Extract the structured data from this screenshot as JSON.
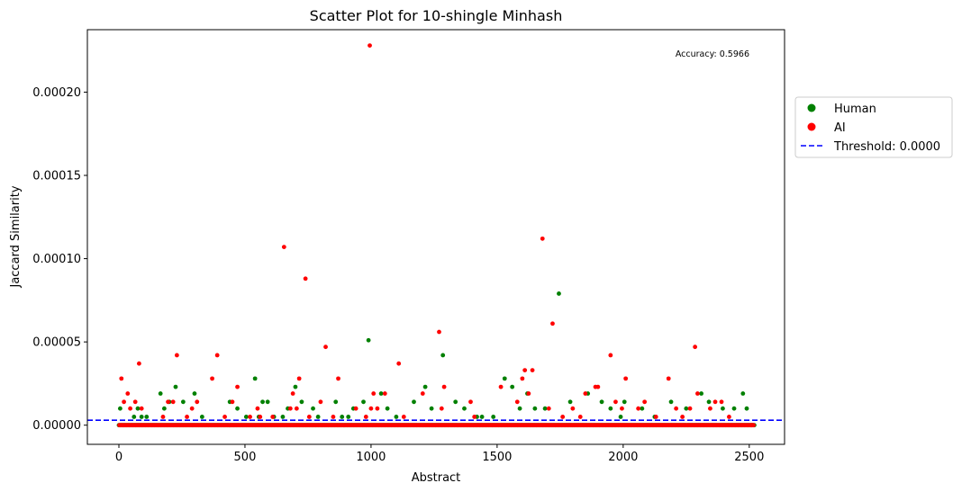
{
  "chart_data": {
    "type": "scatter",
    "title": "Scatter Plot for 10-shingle Minhash",
    "xlabel": "Abstract",
    "ylabel": "Jaccard Similarity",
    "xlim": [
      -125,
      2640
    ],
    "ylim": [
      -1.15e-05,
      0.0002375
    ],
    "xticks": [
      0,
      500,
      1000,
      1500,
      2000,
      2500
    ],
    "yticks": [
      0.0,
      5e-05,
      0.0001,
      0.00015,
      0.0002
    ],
    "xtick_labels": [
      "0",
      "500",
      "1000",
      "1500",
      "2000",
      "2500"
    ],
    "ytick_labels": [
      "0.00000",
      "0.00005",
      "0.00010",
      "0.00015",
      "0.00020"
    ],
    "grid": false,
    "legend_position": "outside-right",
    "annotation": "Accuracy: 0.5966",
    "threshold": {
      "label": "Threshold: 0.0000",
      "value": 3e-06,
      "color": "#0000ff",
      "style": "dashed"
    },
    "series": [
      {
        "name": "Human",
        "color": "#008000",
        "baseline": {
          "x_start": 0,
          "x_end": 2520,
          "step": 5,
          "y": 0.0
        },
        "x": [
          5,
          60,
          75,
          90,
          110,
          165,
          180,
          200,
          225,
          255,
          300,
          330,
          440,
          470,
          505,
          540,
          555,
          570,
          590,
          615,
          650,
          670,
          700,
          725,
          770,
          790,
          860,
          885,
          910,
          930,
          970,
          990,
          1040,
          1065,
          1100,
          1170,
          1215,
          1240,
          1285,
          1335,
          1370,
          1420,
          1440,
          1485,
          1530,
          1560,
          1590,
          1620,
          1650,
          1690,
          1745,
          1790,
          1860,
          1915,
          1950,
          1990,
          2005,
          2075,
          2125,
          2190,
          2250,
          2310,
          2340,
          2395,
          2440,
          2475,
          2490
        ],
        "y": [
          1e-05,
          5e-06,
          1e-05,
          5e-06,
          5e-06,
          1.9e-05,
          1e-05,
          1.4e-05,
          2.3e-05,
          1.4e-05,
          1.9e-05,
          5e-06,
          1.4e-05,
          1e-05,
          5e-06,
          2.8e-05,
          5e-06,
          1.4e-05,
          1.4e-05,
          5e-06,
          5e-06,
          1e-05,
          2.3e-05,
          1.4e-05,
          1e-05,
          5e-06,
          1.4e-05,
          5e-06,
          5e-06,
          1e-05,
          1.4e-05,
          5.1e-05,
          1.9e-05,
          1e-05,
          5e-06,
          1.4e-05,
          2.3e-05,
          1e-05,
          4.2e-05,
          1.4e-05,
          1e-05,
          5e-06,
          5e-06,
          5e-06,
          2.8e-05,
          2.3e-05,
          1e-05,
          1.9e-05,
          1e-05,
          1e-05,
          7.9e-05,
          1.4e-05,
          1.9e-05,
          1.4e-05,
          1e-05,
          5e-06,
          1.4e-05,
          1e-05,
          5e-06,
          1.4e-05,
          1e-05,
          1.9e-05,
          1.4e-05,
          1e-05,
          1e-05,
          1.9e-05,
          1e-05
        ]
      },
      {
        "name": "AI",
        "color": "#ff0000",
        "baseline": {
          "x_start": 2,
          "x_end": 2520,
          "step": 5,
          "y": 0.0
        },
        "x": [
          10,
          20,
          35,
          45,
          65,
          80,
          90,
          175,
          195,
          215,
          230,
          270,
          290,
          310,
          370,
          390,
          420,
          450,
          470,
          520,
          550,
          560,
          610,
          655,
          680,
          690,
          705,
          715,
          740,
          755,
          800,
          820,
          850,
          870,
          940,
          980,
          995,
          1000,
          1010,
          1025,
          1055,
          1110,
          1130,
          1205,
          1270,
          1280,
          1290,
          1395,
          1410,
          1515,
          1580,
          1600,
          1610,
          1625,
          1640,
          1680,
          1705,
          1720,
          1760,
          1800,
          1830,
          1850,
          1890,
          1900,
          1950,
          1970,
          1995,
          2010,
          2060,
          2085,
          2130,
          2180,
          2210,
          2235,
          2265,
          2285,
          2295,
          2345,
          2365,
          2390,
          2420,
          2510
        ],
        "y": [
          2.8e-05,
          1.4e-05,
          1.9e-05,
          1e-05,
          1.4e-05,
          3.7e-05,
          1e-05,
          5e-06,
          1.4e-05,
          1.4e-05,
          4.2e-05,
          5e-06,
          1e-05,
          1.4e-05,
          2.8e-05,
          4.2e-05,
          5e-06,
          1.4e-05,
          2.3e-05,
          5e-06,
          1e-05,
          5e-06,
          5e-06,
          0.000107,
          1e-05,
          1.9e-05,
          1e-05,
          2.8e-05,
          8.8e-05,
          5e-06,
          1.4e-05,
          4.7e-05,
          5e-06,
          2.8e-05,
          1e-05,
          5e-06,
          0.000228,
          1e-05,
          1.9e-05,
          1e-05,
          1.9e-05,
          3.7e-05,
          5e-06,
          1.9e-05,
          5.6e-05,
          1e-05,
          2.3e-05,
          1.4e-05,
          5e-06,
          2.3e-05,
          1.4e-05,
          2.8e-05,
          3.3e-05,
          1.9e-05,
          3.3e-05,
          0.000112,
          1e-05,
          6.1e-05,
          5e-06,
          1e-05,
          5e-06,
          1.9e-05,
          2.3e-05,
          2.3e-05,
          4.2e-05,
          1.4e-05,
          1e-05,
          2.8e-05,
          1e-05,
          1.4e-05,
          5e-06,
          2.8e-05,
          1e-05,
          5e-06,
          1e-05,
          4.7e-05,
          1.9e-05,
          1e-05,
          1.4e-05,
          1.4e-05,
          5e-06,
          0.0
        ]
      }
    ]
  }
}
